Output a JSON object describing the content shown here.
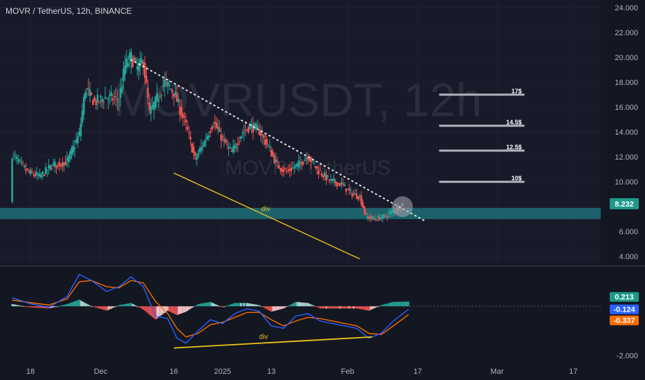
{
  "header": {
    "title": "MOVR / TetherUS, 12h, BINANCE"
  },
  "watermark": {
    "line1": "MOVRUSDT, 12h",
    "line2": "MOVR / TetherUS"
  },
  "colors": {
    "background": "#131722",
    "up": "#26a69a",
    "down": "#ef5350",
    "zone": "#1f6f78",
    "macd": "#2962ff",
    "signal": "#ff6d00",
    "trendline": "#e6e6e6",
    "divergence": "#f0c419",
    "target": "#b2b5be"
  },
  "chart_data": [
    {
      "type": "candlestick",
      "title": "MOVR / TetherUS, 12h, BINANCE",
      "ylim": [
        3.4,
        24.6
      ],
      "y_ticks": [
        "24.000",
        "22.000",
        "20.000",
        "18.000",
        "16.000",
        "14.000",
        "12.000",
        "10.000",
        "6.000",
        "4.000"
      ],
      "y_tick_values": [
        24,
        22,
        20,
        18,
        16,
        14,
        12,
        10,
        6,
        4
      ],
      "last_price": "8.232",
      "last_price_value": 8.232,
      "path": [
        [
          0,
          12.2
        ],
        [
          5,
          10.8
        ],
        [
          9,
          10.4
        ],
        [
          13,
          11.3
        ],
        [
          18,
          11.6
        ],
        [
          22,
          13.8
        ],
        [
          24,
          17.5
        ],
        [
          27,
          16.4
        ],
        [
          31,
          16.8
        ],
        [
          35,
          16.6
        ],
        [
          37,
          19.3
        ],
        [
          39,
          20.0
        ],
        [
          41,
          19.1
        ],
        [
          43,
          19.7
        ],
        [
          45,
          15.5
        ],
        [
          47,
          16.4
        ],
        [
          50,
          18.0
        ],
        [
          53,
          17.2
        ],
        [
          57,
          14.5
        ],
        [
          60,
          11.8
        ],
        [
          63,
          13.2
        ],
        [
          66,
          14.8
        ],
        [
          69,
          13.4
        ],
        [
          72,
          12.3
        ],
        [
          75,
          13.8
        ],
        [
          78,
          14.5
        ],
        [
          81,
          14.1
        ],
        [
          84,
          12.8
        ],
        [
          87,
          11.3
        ],
        [
          90,
          10.8
        ],
        [
          94,
          11.4
        ],
        [
          97,
          12.1
        ],
        [
          100,
          11.0
        ],
        [
          104,
          10.1
        ],
        [
          108,
          9.8
        ],
        [
          111,
          9.1
        ],
        [
          114,
          8.8
        ],
        [
          116,
          7.2
        ],
        [
          119,
          7.0
        ],
        [
          122,
          7.2
        ],
        [
          126,
          7.8
        ],
        [
          128,
          8.23
        ]
      ],
      "support_zone": [
        7.0,
        7.9
      ],
      "trendline": {
        "points": [
          [
            39,
            19.8
          ],
          [
            135,
            6.9
          ]
        ],
        "style": "dotted"
      },
      "divergence_line": {
        "label": "div",
        "points": [
          [
            53,
            10.7
          ],
          [
            114,
            3.8
          ]
        ]
      },
      "highlight": {
        "x": 128,
        "y": 8.0
      },
      "targets": [
        {
          "label": "17$",
          "value": 17
        },
        {
          "label": "14.5$",
          "value": 14.5
        },
        {
          "label": "12.5$",
          "value": 12.5
        },
        {
          "label": "10$",
          "value": 10
        }
      ],
      "targets_x": [
        140,
        168
      ]
    },
    {
      "type": "macd",
      "ylim": [
        -2.3,
        1.5
      ],
      "y_ticks": [
        "-2.000"
      ],
      "y_tick_values": [
        -2
      ],
      "values": {
        "histogram": "0.213",
        "macd": "-0.124",
        "signal": "-0.337"
      },
      "value_numbers": {
        "histogram": 0.213,
        "macd": -0.124,
        "signal": -0.337
      },
      "macd_path": [
        [
          0,
          0.35
        ],
        [
          6,
          0.1
        ],
        [
          12,
          -0.05
        ],
        [
          18,
          0.4
        ],
        [
          22,
          1.3
        ],
        [
          26,
          1.05
        ],
        [
          31,
          0.6
        ],
        [
          35,
          0.8
        ],
        [
          39,
          1.2
        ],
        [
          43,
          0.8
        ],
        [
          47,
          -0.4
        ],
        [
          51,
          -0.5
        ],
        [
          54,
          -1.3
        ],
        [
          57,
          -1.5
        ],
        [
          61,
          -1.0
        ],
        [
          65,
          -0.55
        ],
        [
          69,
          -0.7
        ],
        [
          73,
          -0.3
        ],
        [
          77,
          -0.1
        ],
        [
          81,
          -0.2
        ],
        [
          85,
          -0.8
        ],
        [
          89,
          -0.9
        ],
        [
          93,
          -0.4
        ],
        [
          97,
          -0.3
        ],
        [
          101,
          -0.6
        ],
        [
          105,
          -0.7
        ],
        [
          109,
          -0.8
        ],
        [
          113,
          -0.9
        ],
        [
          117,
          -1.3
        ],
        [
          121,
          -1.1
        ],
        [
          125,
          -0.6
        ],
        [
          130,
          -0.124
        ]
      ],
      "signal_path": [
        [
          0,
          0.25
        ],
        [
          6,
          0.15
        ],
        [
          12,
          0.05
        ],
        [
          18,
          0.3
        ],
        [
          22,
          1.0
        ],
        [
          26,
          1.05
        ],
        [
          31,
          0.8
        ],
        [
          35,
          0.75
        ],
        [
          39,
          1.05
        ],
        [
          43,
          0.95
        ],
        [
          47,
          0.2
        ],
        [
          51,
          -0.3
        ],
        [
          54,
          -0.9
        ],
        [
          57,
          -1.25
        ],
        [
          61,
          -1.1
        ],
        [
          65,
          -0.75
        ],
        [
          69,
          -0.65
        ],
        [
          73,
          -0.45
        ],
        [
          77,
          -0.25
        ],
        [
          81,
          -0.25
        ],
        [
          85,
          -0.55
        ],
        [
          89,
          -0.8
        ],
        [
          93,
          -0.6
        ],
        [
          97,
          -0.45
        ],
        [
          101,
          -0.5
        ],
        [
          105,
          -0.6
        ],
        [
          109,
          -0.7
        ],
        [
          113,
          -0.8
        ],
        [
          117,
          -1.1
        ],
        [
          121,
          -1.15
        ],
        [
          125,
          -0.8
        ],
        [
          130,
          -0.337
        ]
      ],
      "divergence_line": {
        "label": "div",
        "points": [
          [
            53,
            -1.7
          ],
          [
            118,
            -1.25
          ]
        ]
      }
    }
  ],
  "x_axis": {
    "labels": [
      "18",
      "Dec",
      "16",
      "2025",
      "13",
      "Feb",
      "17",
      "Mar",
      "17"
    ],
    "positions": [
      6,
      29,
      53,
      69,
      85,
      110,
      133,
      159,
      184
    ],
    "xlim": [
      -4,
      193
    ]
  }
}
